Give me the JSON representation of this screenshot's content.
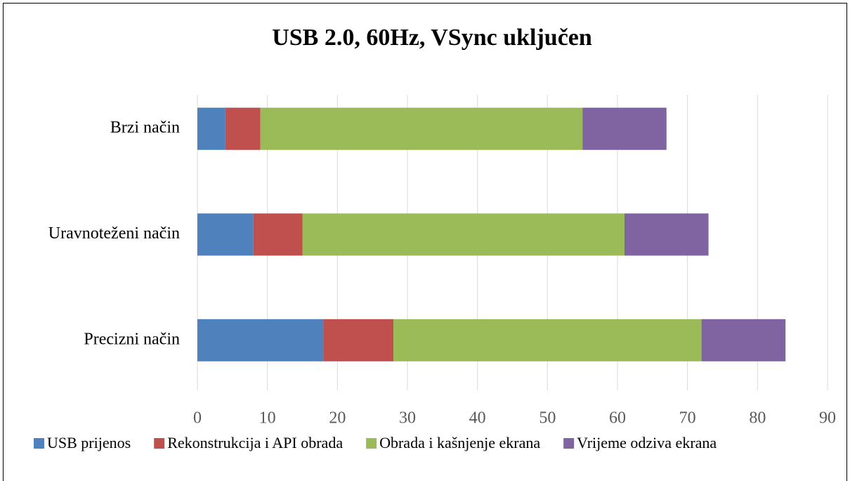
{
  "chart_data": {
    "type": "stacked_bar_horizontal",
    "title": "USB 2.0, 60Hz, VSync uključen",
    "categories": [
      "Brzi način",
      "Uravnoteženi način",
      "Precizni način"
    ],
    "series": [
      {
        "name": "USB prijenos",
        "color": "#4f81bd",
        "values": [
          4,
          8,
          18
        ]
      },
      {
        "name": "Rekonstrukcija i API obrada",
        "color": "#c0504d",
        "values": [
          5,
          7,
          10
        ]
      },
      {
        "name": "Obrada i kašnjenje ekrana",
        "color": "#9bbb59",
        "values": [
          46,
          46,
          44
        ]
      },
      {
        "name": "Vrijeme odziva ekrana",
        "color": "#8064a2",
        "values": [
          12,
          12,
          12
        ]
      }
    ],
    "xlim": [
      0,
      90
    ],
    "xticks": [
      0,
      10,
      20,
      30,
      40,
      50,
      60,
      70,
      80,
      90
    ],
    "grid": true,
    "legend": "bottom"
  }
}
